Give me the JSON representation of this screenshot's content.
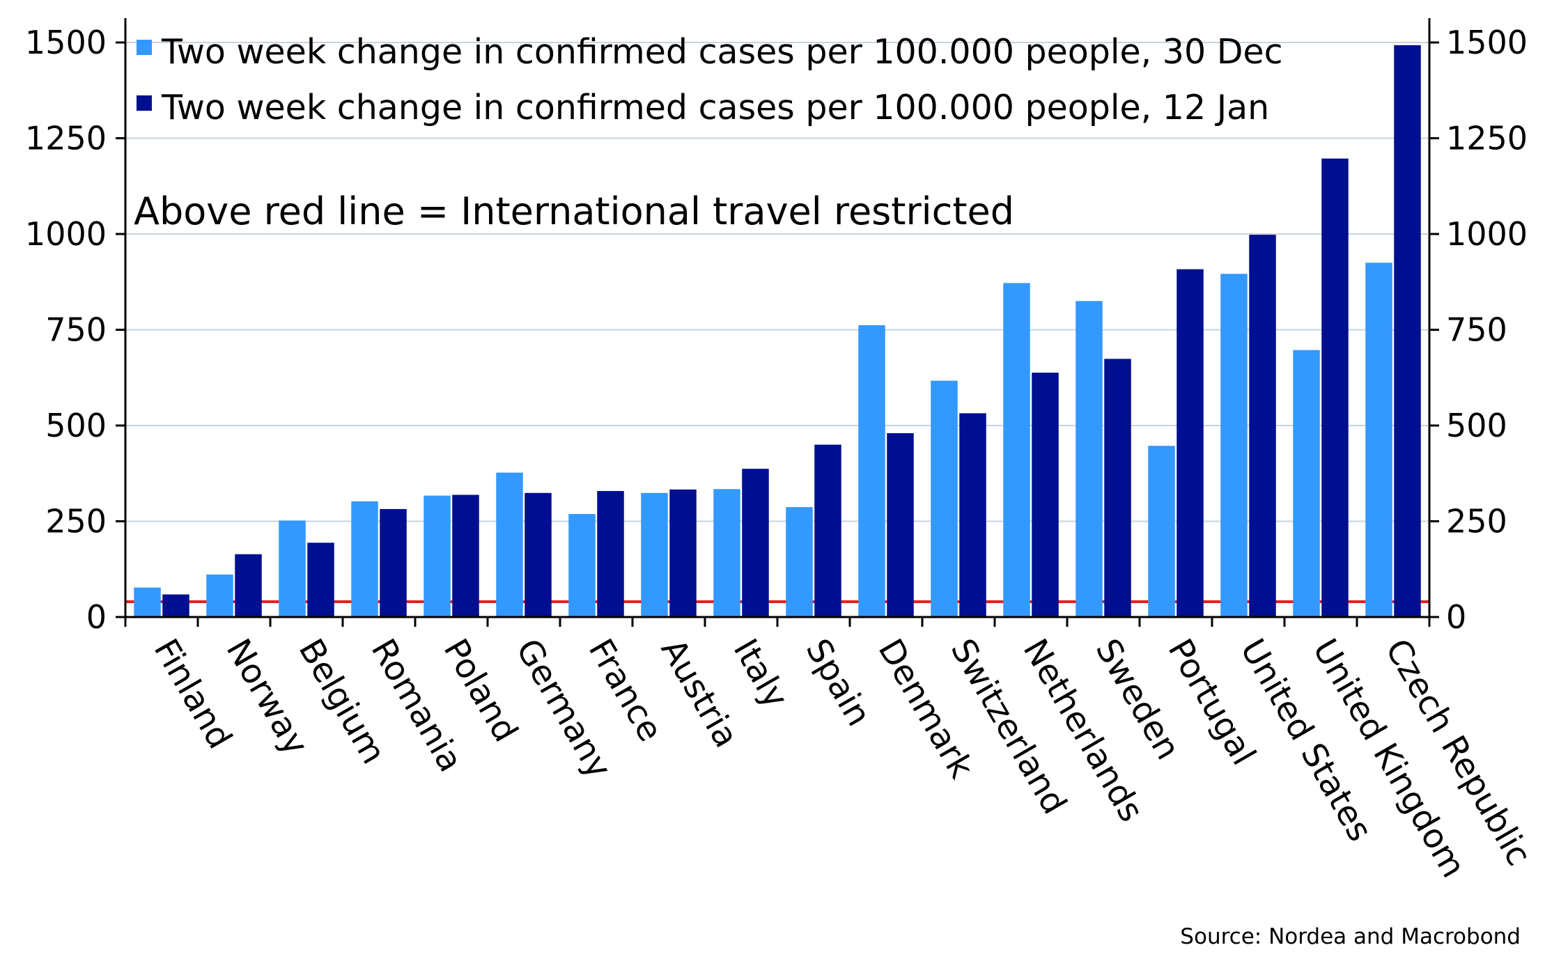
{
  "chart_data": {
    "type": "bar",
    "categories": [
      "Finland",
      "Norway",
      "Belgium",
      "Romania",
      "Poland",
      "Germany",
      "France",
      "Austria",
      "Italy",
      "Spain",
      "Denmark",
      "Switzerland",
      "Netherlands",
      "Sweden",
      "Portugal",
      "United States",
      "United Kingdom",
      "Czech Republic"
    ],
    "series": [
      {
        "name": "Two week change in confirmed cases per 100.000 people, 30 Dec",
        "color": "#3399ff",
        "values": [
          77,
          111,
          252,
          302,
          317,
          377,
          269,
          324,
          334,
          287,
          762,
          617,
          872,
          825,
          447,
          896,
          697,
          925
        ]
      },
      {
        "name": "Two week change in confirmed cases per 100.000 people, 12 Jan",
        "color": "#000f8f",
        "values": [
          59,
          164,
          194,
          282,
          319,
          324,
          329,
          333,
          387,
          450,
          480,
          532,
          638,
          674,
          908,
          998,
          1197,
          1493
        ]
      }
    ],
    "threshold": {
      "value": 40,
      "color": "#ee1c1c"
    },
    "annotation": "Above red line = International travel restricted",
    "source": "Source: Nordea and Macrobond",
    "yticks": [
      0,
      250,
      500,
      750,
      1000,
      1250,
      1500
    ],
    "ylim": [
      0,
      1560
    ],
    "grid": true,
    "legend_position": "top-left",
    "secondary_y_axis": true,
    "xlabel": "",
    "ylabel": "",
    "gridline_color": "#c9d3dc",
    "axis_color": "#000000"
  }
}
